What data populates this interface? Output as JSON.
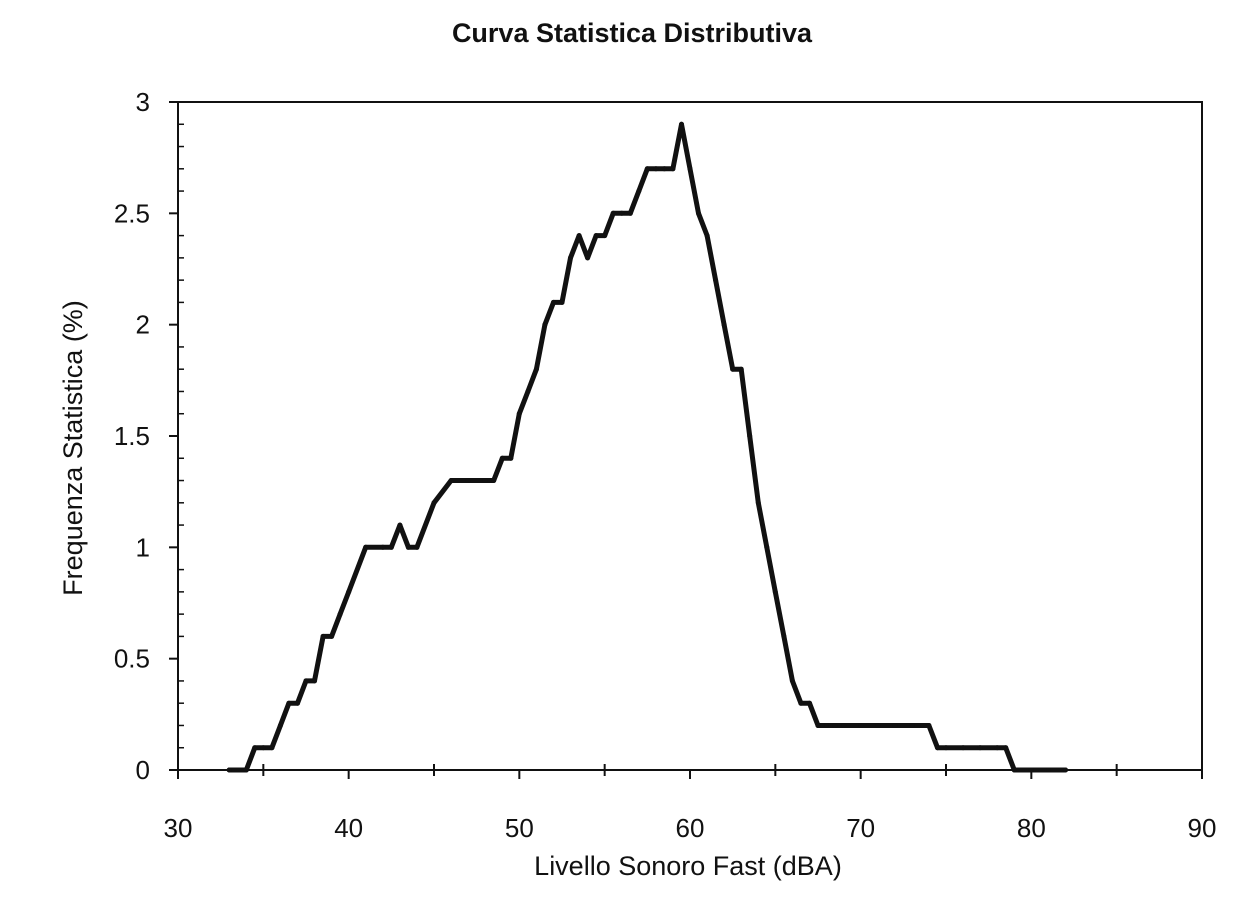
{
  "chart_data": {
    "type": "line",
    "title": "Curva Statistica Distributiva",
    "xlabel": "Livello Sonoro Fast (dBA)",
    "ylabel": "Frequenza Statistica (%)",
    "xlim": [
      30,
      90
    ],
    "ylim": [
      0,
      3
    ],
    "x_ticks": [
      "30",
      "40",
      "50",
      "60",
      "70",
      "80",
      "90"
    ],
    "y_ticks": [
      "0",
      "0.5",
      "1",
      "1.5",
      "2",
      "2.5",
      "3"
    ],
    "grid": false,
    "legend": "none",
    "line_color": "#111111",
    "series": [
      {
        "x": [
          33,
          34,
          34.5,
          35,
          35.5,
          36,
          36.5,
          37,
          37.5,
          38,
          38.5,
          39,
          39.5,
          40,
          41,
          42,
          42.5,
          43,
          43.5,
          44,
          45,
          46,
          47,
          48,
          48.5,
          49,
          49.5,
          50,
          50.5,
          51,
          51.5,
          52,
          52.5,
          53,
          53.5,
          54,
          54.5,
          55,
          55.5,
          56,
          56.5,
          57,
          57.5,
          58,
          58.5,
          59,
          59.5,
          60,
          60.5,
          61,
          61.5,
          62,
          62.5,
          63,
          63.5,
          64,
          64.5,
          65,
          65.5,
          66,
          66.5,
          67,
          67.5,
          68,
          68.5,
          69,
          70,
          71,
          72,
          73,
          74,
          74.5,
          75,
          76,
          77,
          78,
          78.5,
          79,
          80,
          81,
          82
        ],
        "y": [
          0,
          0,
          0.1,
          0.1,
          0.1,
          0.2,
          0.3,
          0.3,
          0.4,
          0.4,
          0.6,
          0.6,
          0.7,
          0.8,
          1.0,
          1.0,
          1.0,
          1.1,
          1.0,
          1.0,
          1.2,
          1.3,
          1.3,
          1.3,
          1.3,
          1.4,
          1.4,
          1.6,
          1.7,
          1.8,
          2.0,
          2.1,
          2.1,
          2.3,
          2.4,
          2.3,
          2.4,
          2.4,
          2.5,
          2.5,
          2.5,
          2.6,
          2.7,
          2.7,
          2.7,
          2.7,
          2.9,
          2.7,
          2.5,
          2.4,
          2.2,
          2.0,
          1.8,
          1.8,
          1.5,
          1.2,
          1.0,
          0.8,
          0.6,
          0.4,
          0.3,
          0.3,
          0.2,
          0.2,
          0.2,
          0.2,
          0.2,
          0.2,
          0.2,
          0.2,
          0.2,
          0.1,
          0.1,
          0.1,
          0.1,
          0.1,
          0.1,
          0,
          0,
          0,
          0
        ]
      }
    ]
  }
}
